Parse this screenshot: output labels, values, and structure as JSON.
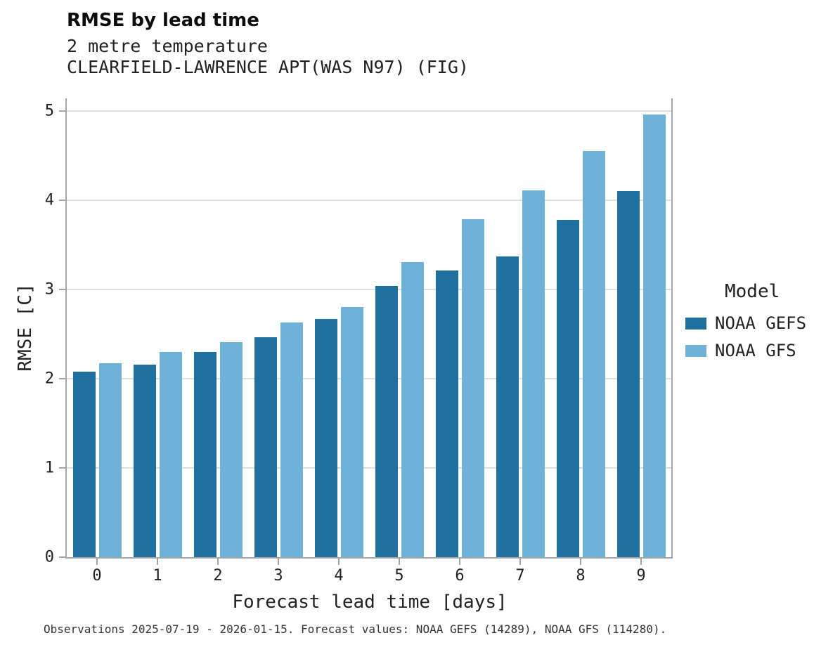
{
  "chart_data": {
    "type": "bar",
    "title": "RMSE by lead time",
    "subtitle1": "2 metre temperature",
    "subtitle2": "CLEARFIELD-LAWRENCE APT(WAS N97) (FIG)",
    "categories": [
      "0",
      "1",
      "2",
      "3",
      "4",
      "5",
      "6",
      "7",
      "8",
      "9"
    ],
    "series": [
      {
        "name": "NOAA GEFS",
        "color": "#1f6f9f",
        "values": [
          2.08,
          2.16,
          2.3,
          2.46,
          2.67,
          3.04,
          3.21,
          3.37,
          3.78,
          4.1
        ]
      },
      {
        "name": "NOAA GFS",
        "color": "#6fb2d9",
        "values": [
          2.17,
          2.3,
          2.41,
          2.63,
          2.8,
          3.31,
          3.79,
          4.11,
          4.55,
          4.96
        ]
      }
    ],
    "xlabel": "Forecast lead time [days]",
    "ylabel": "RMSE [C]",
    "ylim": [
      0,
      5.14
    ],
    "yticks": [
      0,
      1,
      2,
      3,
      4,
      5
    ],
    "grid": true,
    "legend": {
      "title": "Model",
      "position": "right"
    }
  },
  "footer": {
    "caption": "Observations 2025-07-19 - 2026-01-15. Forecast values: NOAA GEFS (14289), NOAA GFS (114280)."
  }
}
